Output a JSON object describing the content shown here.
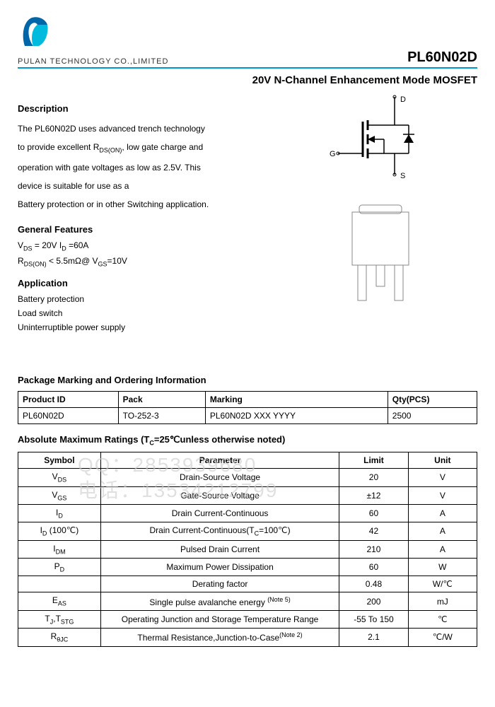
{
  "header": {
    "company": "PULAN TECHNOLOGY CO.,LIMITED",
    "part": "PL60N02D",
    "subtitle": "20V N-Channel Enhancement Mode MOSFET"
  },
  "description": {
    "title": "Description",
    "l1": "The PL60N02D uses advanced trench technology",
    "l2a": "to provide excellent R",
    "l2b": ", low gate charge and",
    "l3": "operation with gate voltages as low as 2.5V. This",
    "l4": " device is suitable for use as a",
    "l5": "Battery protection or in other Switching application."
  },
  "features": {
    "title": "General Features",
    "l1a": "V",
    "l1b": " = 20V  I",
    "l1c": " =60A",
    "l2a": "R",
    "l2b": " < 5.5mΩ@ V",
    "l2c": "=10V"
  },
  "application": {
    "title": "Application",
    "a1": "Battery protection",
    "a2": "Load switch",
    "a3": "Uninterruptible power supply"
  },
  "packaging": {
    "title": "Package Marking and Ordering Information",
    "h1": "Product ID",
    "h2": "Pack",
    "h3": "Marking",
    "h4": "Qty(PCS)",
    "c1": "PL60N02D",
    "c2": "TO-252-3",
    "c3": "PL60N02D XXX YYYY",
    "c4": "2500"
  },
  "ratings": {
    "title_a": "Absolute Maximum Ratings (T",
    "title_b": "=25℃unless otherwise noted)",
    "h1": "Symbol",
    "h2": "Parameter",
    "h3": "Limit",
    "h4": "Unit",
    "rows": [
      {
        "s": "V",
        "sub": "DS",
        "p": "Drain-Source Voltage",
        "l": "20",
        "u": "V"
      },
      {
        "s": "V",
        "sub": "GS",
        "p": "Gate-Source Voltage",
        "l": "±12",
        "u": "V"
      },
      {
        "s": "I",
        "sub": "D",
        "p": "Drain Current-Continuous",
        "l": "60",
        "u": "A"
      },
      {
        "s": "I",
        "sub": "D",
        "suffix": " (100℃)",
        "p_a": "Drain Current-Continuous(T",
        "p_b": "=100℃)",
        "l": "42",
        "u": "A"
      },
      {
        "s": "I",
        "sub": "DM",
        "p": "Pulsed Drain Current",
        "l": "210",
        "u": "A"
      },
      {
        "s": "P",
        "sub": "D",
        "p": "Maximum Power Dissipation",
        "l": "60",
        "u": "W"
      },
      {
        "s": "",
        "sub": "",
        "p": "Derating factor",
        "l": "0.48",
        "u": "W/℃"
      },
      {
        "s": "E",
        "sub": "AS",
        "p_a": "Single pulse avalanche energy ",
        "note": "(Note 5)",
        "l": "200",
        "u": "mJ"
      },
      {
        "s": "T",
        "sub": "J",
        "s2": ",T",
        "sub2": "STG",
        "p": "Operating Junction and Storage Temperature Range",
        "l": "-55 To 150",
        "u": "℃"
      },
      {
        "s": "R",
        "sub": "θJC",
        "p_a": "Thermal Resistance,Junction-to-Case",
        "note": "(Note 2)",
        "l": "2.1",
        "u": "℃/W"
      }
    ]
  },
  "watermark": {
    "l1": "QQ：2853939680",
    "l2": "电话：13534212799"
  },
  "schematic": {
    "d": "D",
    "g": "G",
    "s": "S"
  }
}
